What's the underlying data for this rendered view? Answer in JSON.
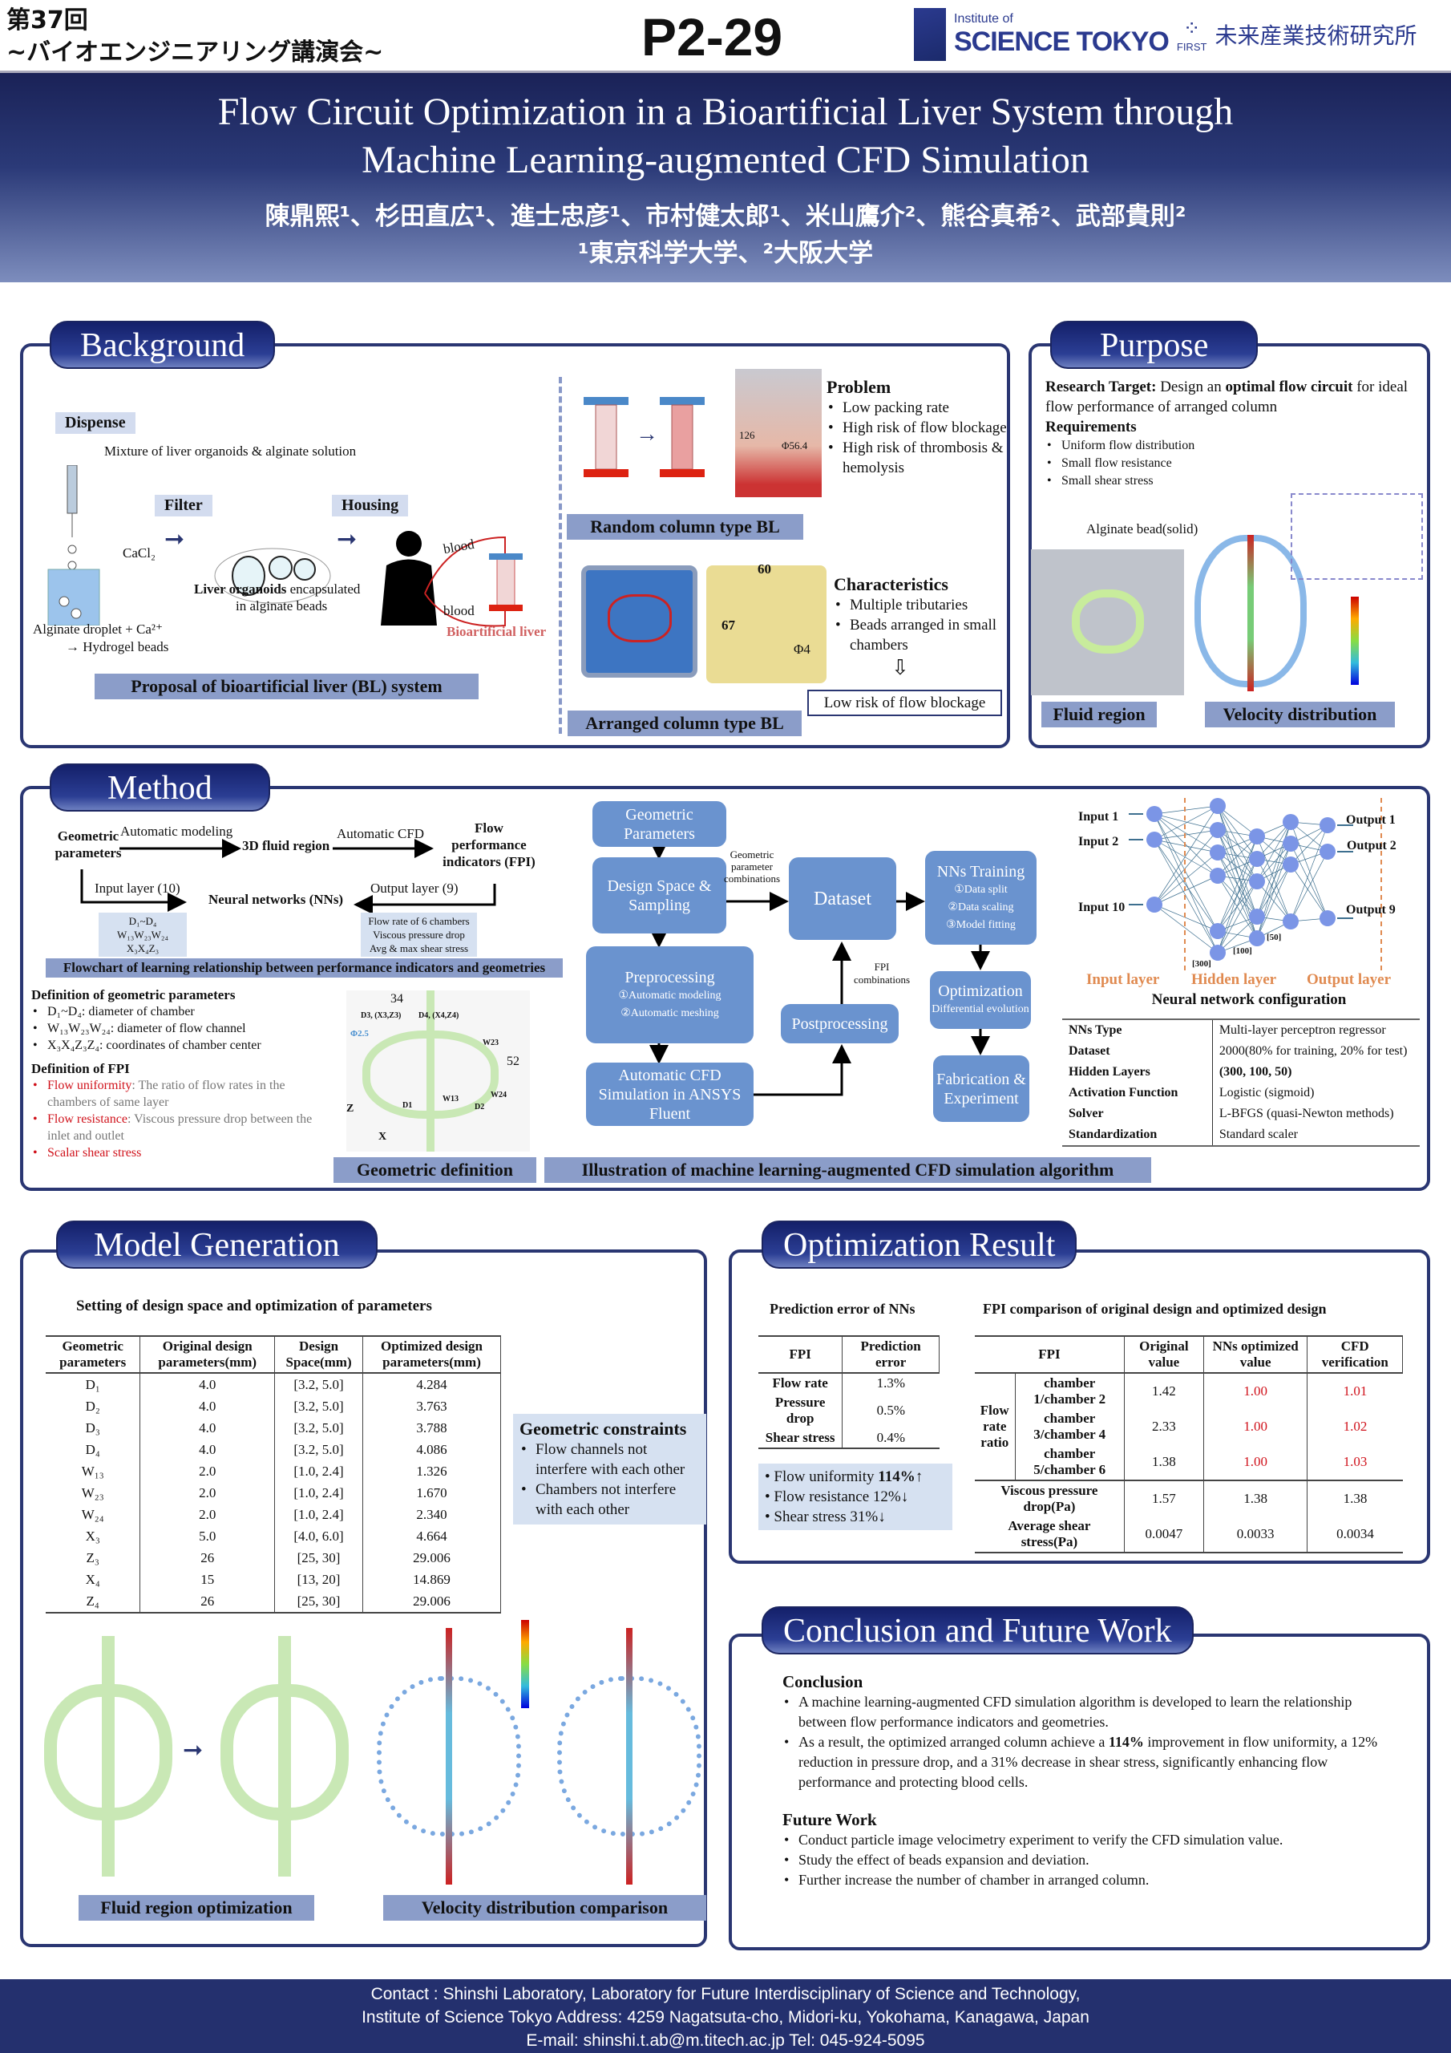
{
  "header": {
    "event_line1": "第37回",
    "event_line2": "~バイオエンジニアリング講演会~",
    "poster_id": "P2-29",
    "logo_institute_small": "Institute of",
    "logo_institute": "SCIENCE TOKYO",
    "logo_first": "FIRST",
    "logo_lab": "未来産業技術研究所",
    "title_line1": "Flow Circuit Optimization in a Bioartificial Liver System through",
    "title_line2": "Machine Learning-augmented CFD Simulation",
    "authors": "陳鼎熙¹、杉田直広¹、進士忠彦¹、市村健太郎¹、米山鷹介²、熊谷真希²、武部貴則²",
    "affiliations": "¹東京科学大学、²大阪大学"
  },
  "background": {
    "tab": "Background",
    "dispense": "Dispense",
    "mixture": "Mixture of liver organoids & alginate solution",
    "filter": "Filter",
    "housing": "Housing",
    "cacl2": "CaCl₂",
    "alginate_line1": "Alginate droplet + Ca²⁺",
    "alginate_line2": "→ Hydrogel beads",
    "organoids_bold": "Liver organoids",
    "organoids_rest": " encapsulated",
    "organoids_line2": "in alginate beads",
    "blood": "blood",
    "bioartificial": "Bioartificial liver",
    "caption_proposal": "Proposal of bioartificial liver (BL) system",
    "problem_title": "Problem",
    "problems": [
      "Low packing rate",
      "High risk of flow blockage",
      "High risk of thrombosis & hemolysis"
    ],
    "dim_126": "126",
    "dim_phi56": "Φ56.4",
    "caption_random": "Random column type BL",
    "characteristics_title": "Characteristics",
    "characteristics": [
      "Multiple tributaries",
      "Beads arranged in small chambers"
    ],
    "dim_60": "60",
    "dim_67": "67",
    "dim_phi4": "Φ4",
    "low_risk": "Low risk of flow blockage",
    "caption_arranged": "Arranged column type BL"
  },
  "purpose": {
    "tab": "Purpose",
    "target_label": "Research Target:",
    "target_a": " Design an ",
    "target_bold": "optimal flow circuit",
    "target_b": " for ideal flow performance of arranged column",
    "req_title": "Requirements",
    "requirements": [
      "Uniform flow distribution",
      "Small flow resistance",
      "Small shear stress"
    ],
    "bead_label": "Alginate bead(solid)",
    "caption_fluid": "Fluid region",
    "caption_velocity": "Velocity distribution"
  },
  "method": {
    "tab": "Method",
    "fc": {
      "geo": "Geometric parameters",
      "auto_model": "Automatic modeling",
      "fluid3d": "3D fluid region",
      "auto_cfd": "Automatic CFD",
      "fpi": "Flow performance indicators (FPI)",
      "input_layer": "Input layer (10)",
      "nn": "Neural networks (NNs)",
      "output_layer": "Output layer (9)",
      "inputs": [
        "D₁~D₄",
        "W₁₃W₂₃W₂₄",
        "X₃X₄Z₃"
      ],
      "outputs": [
        "Flow rate of 6 chambers",
        "Viscous pressure drop",
        "Avg & max shear stress"
      ]
    },
    "caption_flowchart": "Flowchart of learning relationship between performance indicators and geometries",
    "def_geo_title": "Definition of geometric parameters",
    "def_geo": [
      "D₁~D₄: diameter of chamber",
      "W₁₃W₂₃W₂₄: diameter of flow channel",
      "X₃X₄Z₃Z₄: coordinates of chamber center"
    ],
    "def_fpi_title": "Definition of FPI",
    "def_fpi": [
      {
        "term": "Flow uniformity",
        "desc": ": The ratio of flow rates in the chambers of same layer"
      },
      {
        "term": "Flow resistance",
        "desc": ": Viscous pressure drop between the inlet and outlet"
      },
      {
        "term": "Scalar shear stress",
        "desc": ""
      }
    ],
    "geo_labels": {
      "w34": "34",
      "h52": "52",
      "d3": "D3, (X3,Z3)",
      "d4": "D4, (X4,Z4)",
      "phi": "Φ2.5",
      "w23": "W23",
      "w24": "W24",
      "w13": "W13",
      "d1": "D1",
      "d2": "D2",
      "z": "Z",
      "x": "X"
    },
    "caption_geo": "Geometric definition",
    "alg": {
      "geo_params": "Geometric Parameters",
      "design_space": "Design Space & Sampling",
      "geo_comb": "Geometric parameter combinations",
      "dataset": "Dataset",
      "nns_training": "NNs Training",
      "training_steps": [
        "①Data split",
        "②Data scaling",
        "③Model fitting"
      ],
      "preprocessing": "Preprocessing",
      "pre_steps": [
        "①Automatic modeling",
        "②Automatic meshing"
      ],
      "fpi_comb": "FPI combinations",
      "postprocessing": "Postprocessing",
      "optimization": "Optimization",
      "opt_sub": "Differential evolution",
      "auto_cfd": "Automatic CFD Simulation in ANSYS Fluent",
      "fabrication": "Fabrication & Experiment"
    },
    "caption_alg": "Illustration of machine learning-augmented CFD simulation algorithm",
    "nn": {
      "inputs": [
        "Input 1",
        "Input 2",
        "Input 10"
      ],
      "outputs": [
        "Output 1",
        "Output 2",
        "Output 9"
      ],
      "sizes": [
        "[300]",
        "[100]",
        "[50]"
      ],
      "layer_input": "Input layer",
      "layer_hidden": "Hidden layer",
      "layer_output": "Output layer",
      "title": "Neural network configuration",
      "layer_color": "#e08a50"
    },
    "nn_table": [
      [
        "NNs Type",
        "Multi-layer perceptron regressor"
      ],
      [
        "Dataset",
        "2000(80% for training, 20% for test)"
      ],
      [
        "Hidden Layers",
        "(300, 100, 50)"
      ],
      [
        "Activation Function",
        "Logistic (sigmoid)"
      ],
      [
        "Solver",
        "L-BFGS (quasi-Newton methods)"
      ],
      [
        "Standardization",
        "Standard scaler"
      ]
    ]
  },
  "model": {
    "tab": "Model Generation",
    "table_title": "Setting of design space and optimization of parameters",
    "headers": [
      "Geometric parameters",
      "Original design parameters(mm)",
      "Design Space(mm)",
      "Optimized design parameters(mm)"
    ],
    "rows": [
      [
        "D₁",
        "4.0",
        "[3.2, 5.0]",
        "4.284"
      ],
      [
        "D₂",
        "4.0",
        "[3.2, 5.0]",
        "3.763"
      ],
      [
        "D₃",
        "4.0",
        "[3.2, 5.0]",
        "3.788"
      ],
      [
        "D₄",
        "4.0",
        "[3.2, 5.0]",
        "4.086"
      ],
      [
        "W₁₃",
        "2.0",
        "[1.0, 2.4]",
        "1.326"
      ],
      [
        "W₂₃",
        "2.0",
        "[1.0, 2.4]",
        "1.670"
      ],
      [
        "W₂₄",
        "2.0",
        "[1.0, 2.4]",
        "2.340"
      ],
      [
        "X₃",
        "5.0",
        "[4.0, 6.0]",
        "4.664"
      ],
      [
        "Z₃",
        "26",
        "[25, 30]",
        "29.006"
      ],
      [
        "X₄",
        "15",
        "[13, 20]",
        "14.869"
      ],
      [
        "Z₄",
        "26",
        "[25, 30]",
        "29.006"
      ]
    ],
    "constraints_title": "Geometric constraints",
    "constraints": [
      "Flow channels not interfere with each other",
      "Chambers not interfere with each other"
    ],
    "caption_fluid": "Fluid region optimization",
    "caption_velocity": "Velocity distribution comparison"
  },
  "optimization": {
    "tab": "Optimization Result",
    "pred_title": "Prediction error of NNs",
    "pred_headers": [
      "FPI",
      "Prediction error"
    ],
    "pred_rows": [
      [
        "Flow rate",
        "1.3%"
      ],
      [
        "Pressure drop",
        "0.5%"
      ],
      [
        "Shear stress",
        "0.4%"
      ]
    ],
    "summary": [
      {
        "text": "Flow uniformity ",
        "bold": "114%",
        "arrow": "↑"
      },
      {
        "text": "Flow resistance 12%",
        "bold": "",
        "arrow": "↓"
      },
      {
        "text": "Shear stress 31%",
        "bold": "",
        "arrow": "↓"
      }
    ],
    "cmp_title": "FPI comparison of original design and optimized design",
    "cmp_headers": [
      "FPI",
      "Original value",
      "NNs optimized value",
      "CFD verification"
    ],
    "ratio_label": "Flow rate ratio",
    "ratio_rows": [
      [
        "chamber 1/chamber 2",
        "1.42",
        "1.00",
        "1.01"
      ],
      [
        "chamber 3/chamber 4",
        "2.33",
        "1.00",
        "1.02"
      ],
      [
        "chamber 5/chamber 6",
        "1.38",
        "1.00",
        "1.03"
      ]
    ],
    "other_rows": [
      [
        "Viscous pressure drop(Pa)",
        "1.57",
        "1.38",
        "1.38"
      ],
      [
        "Average shear stress(Pa)",
        "0.0047",
        "0.0033",
        "0.0034"
      ]
    ],
    "highlight_color": "#d0121b"
  },
  "conclusion": {
    "tab": "Conclusion and Future Work",
    "c_title": "Conclusion",
    "c1": "A machine learning-augmented CFD simulation algorithm is developed to learn the relationship between  flow performance indicators and geometries.",
    "c2a": "As a result, the optimized arranged column achieve a ",
    "c2b": "114%",
    "c2c": " improvement in flow uniformity, a 12% reduction in pressure drop, and a 31% decrease in shear stress, significantly enhancing flow performance and protecting blood cells.",
    "f_title": "Future Work",
    "future": [
      "Conduct particle image velocimetry experiment to verify the CFD simulation value.",
      "Study the effect of beads expansion and deviation.",
      "Further increase the number of chamber in arranged column."
    ]
  },
  "footer": {
    "line1": "Contact : Shinshi Laboratory, Laboratory for Future Interdisciplinary of Science and Technology,",
    "line2": "Institute of Science Tokyo   Address: 4259 Nagatsuta-cho, Midori-ku, Yokohama, Kanagawa, Japan",
    "line3": "E-mail: shinshi.t.ab@m.titech.ac.jp   Tel: 045-924-5095"
  }
}
